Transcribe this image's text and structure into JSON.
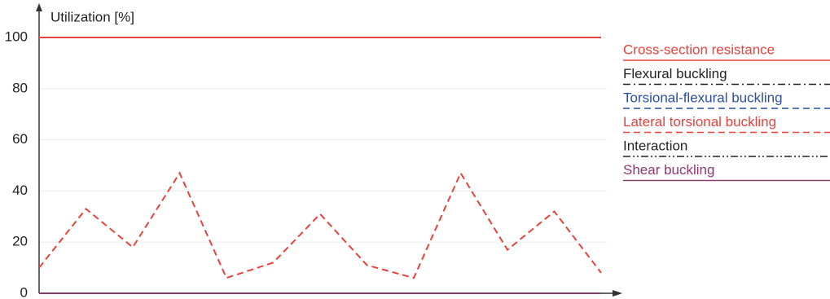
{
  "chart_data": {
    "type": "line",
    "y_label": "Utilization [%]",
    "categories": [
      null,
      null,
      null,
      null,
      null,
      null,
      null,
      null,
      null,
      null,
      null,
      null,
      null
    ],
    "series": [
      {
        "name": "Cross-section resistance",
        "color": "#e8423c",
        "style": "solid",
        "values": [
          100,
          100,
          100,
          100,
          100,
          100,
          100,
          100,
          100,
          100,
          100,
          100,
          100
        ]
      },
      {
        "name": "Flexural buckling",
        "color": "#222222",
        "style": "dash-dot",
        "values": [
          null,
          null,
          null,
          null,
          null,
          null,
          null,
          null,
          null,
          null,
          null,
          null,
          null
        ]
      },
      {
        "name": "Torsional-flexural buckling",
        "color": "#2a4fa3",
        "style": "dashed",
        "values": [
          null,
          null,
          null,
          null,
          null,
          null,
          null,
          null,
          null,
          null,
          null,
          null,
          null
        ]
      },
      {
        "name": "Lateral torsional buckling",
        "color": "#e8423c",
        "style": "dashed",
        "values": [
          10,
          33,
          18,
          47,
          6,
          12,
          31,
          11,
          6,
          47,
          17,
          32,
          8
        ]
      },
      {
        "name": "Interaction",
        "color": "#222222",
        "style": "dash-dot-dot",
        "values": [
          null,
          null,
          null,
          null,
          null,
          null,
          null,
          null,
          null,
          null,
          null,
          null,
          null
        ]
      },
      {
        "name": "Shear buckling",
        "color": "#8a3a6e",
        "style": "solid",
        "values": [
          0,
          0,
          0,
          0,
          0,
          0,
          0,
          0,
          0,
          0,
          0,
          0,
          0
        ]
      }
    ],
    "ylim": [
      0,
      100
    ],
    "yticks": [
      0,
      20,
      40,
      60,
      80,
      100
    ],
    "grid": true
  }
}
